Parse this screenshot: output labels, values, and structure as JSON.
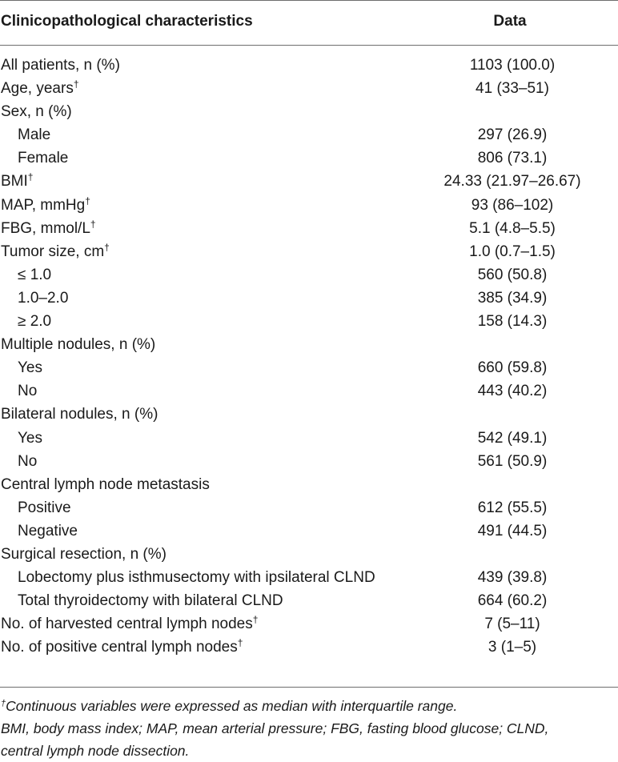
{
  "header": {
    "col1": "Clinicopathological characteristics",
    "col2": "Data"
  },
  "rows": [
    {
      "label": "All patients, n (%)",
      "value": "1103 (100.0)"
    },
    {
      "label": "Age, years",
      "dagger": "†",
      "value": "41 (33–51)"
    },
    {
      "label": "Sex, n (%)",
      "value": ""
    },
    {
      "label": "Male",
      "value": "297 (26.9)"
    },
    {
      "label": "Female",
      "value": "806 (73.1)"
    },
    {
      "label": "BMI",
      "dagger": "†",
      "value": "24.33 (21.97–26.67)"
    },
    {
      "label": "MAP, mmHg",
      "dagger": "†",
      "value": "93 (86–102)"
    },
    {
      "label": "FBG, mmol/L",
      "dagger": "†",
      "value": "5.1 (4.8–5.5)"
    },
    {
      "label": "Tumor size, cm",
      "dagger": "†",
      "value": "1.0 (0.7–1.5)"
    },
    {
      "label": "≤ 1.0",
      "value": "560 (50.8)"
    },
    {
      "label": "1.0–2.0",
      "value": "385 (34.9)"
    },
    {
      "label": "≥ 2.0",
      "value": "158 (14.3)"
    },
    {
      "label": "Multiple nodules, n (%)",
      "value": ""
    },
    {
      "label": "Yes",
      "value": "660 (59.8)"
    },
    {
      "label": "No",
      "value": "443 (40.2)"
    },
    {
      "label": "Bilateral nodules, n (%)",
      "value": ""
    },
    {
      "label": "Yes",
      "value": "542 (49.1)"
    },
    {
      "label": "No",
      "value": "561 (50.9)"
    },
    {
      "label": "Central lymph node metastasis",
      "value": ""
    },
    {
      "label": "Positive",
      "value": "612 (55.5)"
    },
    {
      "label": "Negative",
      "value": "491 (44.5)"
    },
    {
      "label": "Surgical resection, n (%)",
      "value": ""
    },
    {
      "label": "Lobectomy plus isthmusectomy with ipsilateral CLND",
      "value": "439 (39.8)"
    },
    {
      "label": "Total thyroidectomy with bilateral CLND",
      "value": "664 (60.2)"
    },
    {
      "label": "No. of harvested central lymph nodes",
      "dagger": "†",
      "value": "7 (5–11)"
    },
    {
      "label": "No. of positive central lymph nodes",
      "dagger": "†",
      "value": "3 (1–5)"
    }
  ],
  "notes": {
    "dagger": "†",
    "line1": "Continuous variables were expressed as median with interquartile range.",
    "line2": "BMI, body mass index; MAP, mean arterial pressure; FBG, fasting blood glucose; CLND,",
    "line3": "central lymph node dissection."
  }
}
